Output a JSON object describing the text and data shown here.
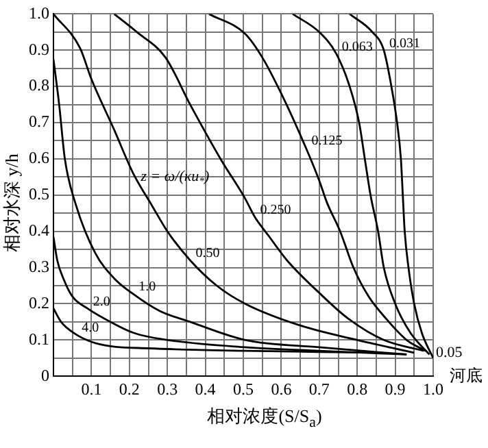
{
  "chart_data": {
    "type": "line",
    "xlabel": "相对浓度(S/S$_{a}$)",
    "ylabel": "相对水深 y/h",
    "xlim": [
      0,
      1
    ],
    "ylim": [
      0,
      1
    ],
    "xticks": [
      {
        "value": 0,
        "label": null
      },
      {
        "value": 0.05,
        "label": null
      },
      0.1,
      {
        "value": 0.15,
        "label": null
      },
      0.2,
      {
        "value": 0.25,
        "label": null
      },
      0.3,
      {
        "value": 0.35,
        "label": null
      },
      0.4,
      {
        "value": 0.45,
        "label": null
      },
      0.5,
      {
        "value": 0.55,
        "label": null
      },
      0.6,
      {
        "value": 0.65,
        "label": null
      },
      0.7,
      {
        "value": 0.75,
        "label": null
      },
      0.8,
      {
        "value": 0.85,
        "label": null
      },
      0.9,
      {
        "value": 0.95,
        "label": null
      },
      {
        "value": 1,
        "label": "1.0"
      }
    ],
    "yticks": [
      0,
      {
        "value": 0.05,
        "label": null
      },
      0.1,
      {
        "value": 0.15,
        "label": null
      },
      0.2,
      {
        "value": 0.25,
        "label": null
      },
      0.3,
      {
        "value": 0.35,
        "label": null
      },
      0.4,
      {
        "value": 0.45,
        "label": null
      },
      0.5,
      {
        "value": 0.55,
        "label": null
      },
      0.6,
      {
        "value": 0.65,
        "label": null
      },
      0.7,
      {
        "value": 0.75,
        "label": null
      },
      0.8,
      {
        "value": 0.85,
        "label": null
      },
      0.9,
      {
        "value": 0.95,
        "label": null
      },
      {
        "value": 1,
        "label": "1.0"
      }
    ],
    "grid": true,
    "marker": "none",
    "line_style": "solid",
    "series": [
      {
        "name": "0.031",
        "color": "#000000",
        "x": [
          0.78,
          0.84,
          0.87,
          0.89,
          0.905,
          0.915,
          0.92,
          0.925,
          0.935,
          0.95,
          0.97,
          1.0
        ],
        "values": [
          1.0,
          0.95,
          0.9,
          0.8,
          0.7,
          0.6,
          0.5,
          0.4,
          0.3,
          0.2,
          0.12,
          0.05
        ]
      },
      {
        "name": "0.063",
        "color": "#000000",
        "x": [
          0.63,
          0.7,
          0.745,
          0.78,
          0.805,
          0.82,
          0.835,
          0.855,
          0.87,
          0.9,
          0.94,
          0.99
        ],
        "values": [
          1.0,
          0.95,
          0.89,
          0.8,
          0.7,
          0.6,
          0.5,
          0.4,
          0.3,
          0.2,
          0.12,
          0.06
        ]
      },
      {
        "name": "0.125",
        "color": "#000000",
        "x": [
          0.41,
          0.505,
          0.55,
          0.6,
          0.665,
          0.7,
          0.72,
          0.755,
          0.79,
          0.83,
          0.875,
          0.93,
          0.98
        ],
        "values": [
          1.0,
          0.945,
          0.88,
          0.78,
          0.63,
          0.54,
          0.48,
          0.4,
          0.3,
          0.22,
          0.16,
          0.1,
          0.07
        ]
      },
      {
        "name": "0.250",
        "color": "#000000",
        "x": [
          0.16,
          0.22,
          0.295,
          0.36,
          0.44,
          0.505,
          0.53,
          0.565,
          0.615,
          0.7,
          0.775,
          0.87,
          0.975
        ],
        "values": [
          1.0,
          0.95,
          0.88,
          0.75,
          0.6,
          0.49,
          0.44,
          0.39,
          0.32,
          0.23,
          0.16,
          0.1,
          0.07
        ]
      },
      {
        "name": "0.50",
        "color": "#000000",
        "x": [
          0.0,
          0.07,
          0.1,
          0.16,
          0.21,
          0.26,
          0.3,
          0.36,
          0.43,
          0.505,
          0.65,
          0.8,
          0.95
        ],
        "values": [
          1.0,
          0.906,
          0.82,
          0.68,
          0.56,
          0.47,
          0.4,
          0.32,
          0.25,
          0.2,
          0.14,
          0.1,
          0.065
        ]
      },
      {
        "name": "1.0",
        "color": "#000000",
        "x": [
          0.0,
          0.015,
          0.03,
          0.06,
          0.11,
          0.16,
          0.21,
          0.28,
          0.36,
          0.505,
          0.7,
          0.93
        ],
        "values": [
          0.875,
          0.75,
          0.6,
          0.47,
          0.34,
          0.27,
          0.227,
          0.18,
          0.15,
          0.1,
          0.08,
          0.06
        ]
      },
      {
        "name": "2.0",
        "color": "#000000",
        "x": [
          0.0,
          0.01,
          0.026,
          0.05,
          0.09,
          0.15,
          0.21,
          0.3,
          0.505,
          0.7,
          0.93
        ],
        "values": [
          0.385,
          0.32,
          0.27,
          0.22,
          0.187,
          0.15,
          0.12,
          0.1,
          0.08,
          0.07,
          0.06
        ]
      },
      {
        "name": "4.0",
        "color": "#000000",
        "x": [
          0.0,
          0.02,
          0.06,
          0.1,
          0.15,
          0.25,
          0.505,
          0.7,
          0.86
        ],
        "values": [
          0.187,
          0.15,
          0.115,
          0.095,
          0.083,
          0.077,
          0.07,
          0.067,
          0.065
        ]
      }
    ],
    "annotations": [
      "z = ω/(κu$_{*}$)",
      "河底",
      {
        "text": "0.05",
        "x": 1.0,
        "y": 0.05
      }
    ]
  }
}
